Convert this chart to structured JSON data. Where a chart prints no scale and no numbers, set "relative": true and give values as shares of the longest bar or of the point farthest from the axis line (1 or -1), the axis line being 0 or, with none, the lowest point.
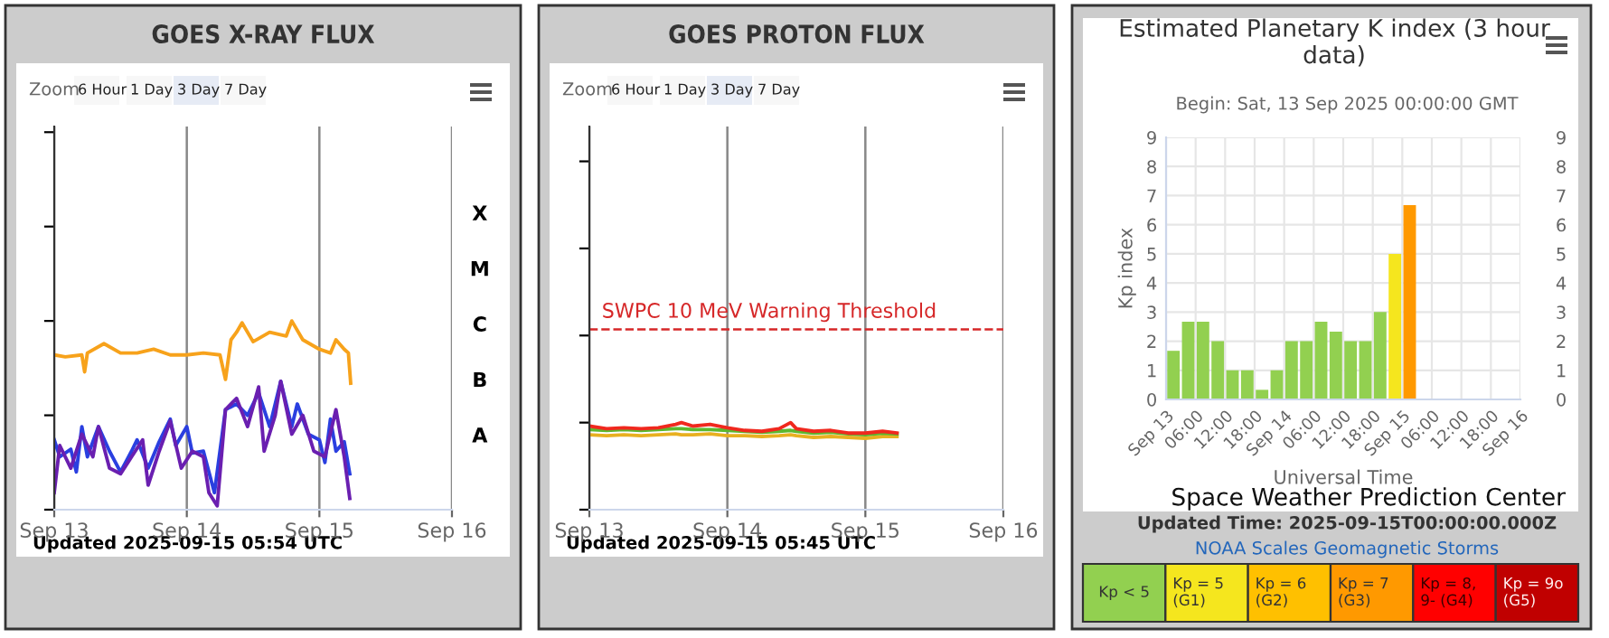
{
  "chart_data": [
    {
      "type": "line",
      "title": "GOES X-RAY FLUX",
      "relative": true,
      "grid": "x",
      "xlim": [
        "2025-09-13",
        "2025-09-16"
      ],
      "xticks": [
        {
          "value": "2025-09-13",
          "label": "Sep 13"
        },
        {
          "value": "2025-09-14",
          "label": "Sep 14"
        },
        {
          "value": "2025-09-15",
          "label": "Sep 15"
        },
        {
          "value": "2025-09-16",
          "label": "Sep 16"
        }
      ],
      "annotations": [
        "Zoom",
        "6 Hour",
        "1 Day",
        "3 Day",
        "7 Day",
        "Updated 2025-09-15 05:54 UTC",
        "X",
        "M",
        "C",
        "B",
        "A"
      ],
      "series": [
        {
          "color": "#f7a21b",
          "x": [
            "2025-09-13T00:00",
            "2025-09-13T02:00",
            "2025-09-13T05:00",
            "2025-09-13T05:30",
            "2025-09-13T06:00",
            "2025-09-13T09:00",
            "2025-09-13T12:00",
            "2025-09-13T15:00",
            "2025-09-13T18:00",
            "2025-09-13T21:00",
            "2025-09-14T00:00",
            "2025-09-14T03:00",
            "2025-09-14T06:00",
            "2025-09-14T07:00",
            "2025-09-14T08:00",
            "2025-09-14T09:00",
            "2025-09-14T10:00",
            "2025-09-14T12:00",
            "2025-09-14T15:00",
            "2025-09-14T18:00",
            "2025-09-14T19:00",
            "2025-09-14T21:00",
            "2025-09-15T00:00",
            "2025-09-15T02:00",
            "2025-09-15T03:00",
            "2025-09-15T04:30",
            "2025-09-15T05:15",
            "2025-09-15T05:40"
          ],
          "values": [
            0.82,
            0.81,
            0.82,
            0.73,
            0.83,
            0.88,
            0.83,
            0.83,
            0.85,
            0.82,
            0.82,
            0.83,
            0.82,
            0.69,
            0.9,
            0.94,
            0.99,
            0.89,
            0.94,
            0.92,
            1.0,
            0.9,
            0.85,
            0.83,
            0.9,
            0.85,
            0.83,
            0.67
          ]
        },
        {
          "color": "#2a3fe0",
          "x": [
            "2025-09-13T00:00",
            "2025-09-13T01:00",
            "2025-09-13T03:00",
            "2025-09-13T04:00",
            "2025-09-13T05:00",
            "2025-09-13T06:00",
            "2025-09-13T08:00",
            "2025-09-13T10:00",
            "2025-09-13T12:00",
            "2025-09-13T14:00",
            "2025-09-13T15:00",
            "2025-09-13T17:00",
            "2025-09-13T19:00",
            "2025-09-13T21:00",
            "2025-09-13T22:00",
            "2025-09-14T00:00",
            "2025-09-14T01:00",
            "2025-09-14T03:00",
            "2025-09-14T05:00",
            "2025-09-14T06:00",
            "2025-09-14T07:00",
            "2025-09-14T09:00",
            "2025-09-14T11:00",
            "2025-09-14T13:00",
            "2025-09-14T15:00",
            "2025-09-14T17:00",
            "2025-09-14T19:00",
            "2025-09-14T20:00",
            "2025-09-14T22:00",
            "2025-09-15T00:00",
            "2025-09-15T01:00",
            "2025-09-15T02:00",
            "2025-09-15T03:00",
            "2025-09-15T04:30",
            "2025-09-15T05:30"
          ],
          "values": [
            0.37,
            0.28,
            0.32,
            0.2,
            0.44,
            0.28,
            0.44,
            0.31,
            0.2,
            0.31,
            0.37,
            0.22,
            0.36,
            0.48,
            0.34,
            0.44,
            0.3,
            0.31,
            0.09,
            0.31,
            0.53,
            0.56,
            0.5,
            0.62,
            0.44,
            0.68,
            0.44,
            0.56,
            0.4,
            0.37,
            0.25,
            0.48,
            0.31,
            0.36,
            0.19
          ]
        },
        {
          "color": "#6a1fb0",
          "x": [
            "2025-09-13T00:00",
            "2025-09-13T01:00",
            "2025-09-13T03:00",
            "2025-09-13T05:00",
            "2025-09-13T07:00",
            "2025-09-13T08:00",
            "2025-09-13T10:00",
            "2025-09-13T12:00",
            "2025-09-13T14:00",
            "2025-09-13T16:00",
            "2025-09-13T17:00",
            "2025-09-13T19:00",
            "2025-09-13T21:00",
            "2025-09-13T23:00",
            "2025-09-14T01:00",
            "2025-09-14T03:00",
            "2025-09-14T04:00",
            "2025-09-14T05:30",
            "2025-09-14T07:00",
            "2025-09-14T09:00",
            "2025-09-14T11:00",
            "2025-09-14T13:00",
            "2025-09-14T14:00",
            "2025-09-14T16:00",
            "2025-09-14T17:00",
            "2025-09-14T19:00",
            "2025-09-14T21:00",
            "2025-09-14T23:00",
            "2025-09-15T01:00",
            "2025-09-15T03:00",
            "2025-09-15T04:30",
            "2025-09-15T05:30"
          ],
          "values": [
            0.09,
            0.34,
            0.22,
            0.4,
            0.28,
            0.44,
            0.22,
            0.19,
            0.28,
            0.37,
            0.13,
            0.31,
            0.47,
            0.22,
            0.31,
            0.28,
            0.09,
            0.02,
            0.53,
            0.59,
            0.44,
            0.65,
            0.31,
            0.5,
            0.68,
            0.4,
            0.5,
            0.31,
            0.28,
            0.53,
            0.28,
            0.06
          ]
        }
      ]
    },
    {
      "type": "line",
      "title": "GOES PROTON FLUX",
      "relative": true,
      "grid": "x",
      "xlim": [
        "2025-09-13",
        "2025-09-16"
      ],
      "xticks": [
        {
          "value": "2025-09-13",
          "label": "Sep 13"
        },
        {
          "value": "2025-09-14",
          "label": "Sep 14"
        },
        {
          "value": "2025-09-15",
          "label": "Sep 15"
        },
        {
          "value": "2025-09-16",
          "label": "Sep 16"
        }
      ],
      "ref_lines": [
        {
          "axis": "y",
          "value": 2.07,
          "label": "SWPC 10 MeV Warning Threshold",
          "color": "#d62728",
          "line_style": "dashed"
        }
      ],
      "annotations": [
        "Zoom",
        "6 Hour",
        "1 Day",
        "3 Day",
        "7 Day",
        "Updated 2025-09-15 05:45 UTC"
      ],
      "x": [
        "2025-09-13T00:00",
        "2025-09-13T03:00",
        "2025-09-13T06:00",
        "2025-09-13T09:00",
        "2025-09-13T12:00",
        "2025-09-13T15:00",
        "2025-09-13T16:00",
        "2025-09-13T18:00",
        "2025-09-13T21:00",
        "2025-09-14T00:00",
        "2025-09-14T03:00",
        "2025-09-14T06:00",
        "2025-09-14T09:00",
        "2025-09-14T11:00",
        "2025-09-14T12:00",
        "2025-09-14T15:00",
        "2025-09-14T18:00",
        "2025-09-14T21:00",
        "2025-09-15T00:00",
        "2025-09-15T03:00",
        "2025-09-15T05:30"
      ],
      "series": [
        {
          "color": "#e8b020",
          "values": [
            0.86,
            0.85,
            0.86,
            0.85,
            0.86,
            0.87,
            0.86,
            0.86,
            0.87,
            0.85,
            0.85,
            0.84,
            0.85,
            0.86,
            0.85,
            0.83,
            0.84,
            0.83,
            0.82,
            0.84,
            0.84
          ]
        },
        {
          "color": "#5cb82e",
          "values": [
            0.92,
            0.91,
            0.92,
            0.91,
            0.92,
            0.93,
            0.93,
            0.92,
            0.92,
            0.91,
            0.9,
            0.89,
            0.9,
            0.91,
            0.9,
            0.88,
            0.89,
            0.87,
            0.86,
            0.88,
            0.87
          ]
        },
        {
          "color": "#f0281e",
          "values": [
            0.96,
            0.93,
            0.94,
            0.93,
            0.94,
            0.98,
            1.0,
            0.96,
            0.98,
            0.94,
            0.91,
            0.9,
            0.93,
            1.0,
            0.93,
            0.9,
            0.91,
            0.88,
            0.88,
            0.9,
            0.88
          ]
        }
      ]
    },
    {
      "type": "bar",
      "title": "Estimated Planetary K index (3 hour data)",
      "subtitle": "Begin: Sat, 13 Sep 2025 00:00:00 GMT",
      "xlabel": "Universal Time",
      "ylabel": "Kp index",
      "grid": true,
      "xlim": [
        "2025-09-13T00:00",
        "2025-09-16T00:00"
      ],
      "xticks": [
        {
          "value": "2025-09-13T00:00",
          "label": "Sep 13"
        },
        {
          "value": "2025-09-13T06:00",
          "label": "06:00"
        },
        {
          "value": "2025-09-13T12:00",
          "label": "12:00"
        },
        {
          "value": "2025-09-13T18:00",
          "label": "18:00"
        },
        {
          "value": "2025-09-14T00:00",
          "label": "Sep 14"
        },
        {
          "value": "2025-09-14T06:00",
          "label": "06:00"
        },
        {
          "value": "2025-09-14T12:00",
          "label": "12:00"
        },
        {
          "value": "2025-09-14T18:00",
          "label": "18:00"
        },
        {
          "value": "2025-09-15T00:00",
          "label": "Sep 15"
        },
        {
          "value": "2025-09-15T06:00",
          "label": "06:00"
        },
        {
          "value": "2025-09-15T12:00",
          "label": "12:00"
        },
        {
          "value": "2025-09-15T18:00",
          "label": "18:00"
        },
        {
          "value": "2025-09-16T00:00",
          "label": "Sep 16"
        }
      ],
      "ylim": [
        0,
        9
      ],
      "yticks": [
        0,
        1,
        2,
        3,
        4,
        5,
        6,
        7,
        8,
        9
      ],
      "y2lim": [
        0,
        9
      ],
      "y2ticks": [
        0,
        1,
        2,
        3,
        4,
        5,
        6,
        7,
        8,
        9
      ],
      "x": [
        "2025-09-13T01:30",
        "2025-09-13T04:30",
        "2025-09-13T07:30",
        "2025-09-13T10:30",
        "2025-09-13T13:30",
        "2025-09-13T16:30",
        "2025-09-13T19:30",
        "2025-09-13T22:30",
        "2025-09-14T01:30",
        "2025-09-14T04:30",
        "2025-09-14T07:30",
        "2025-09-14T10:30",
        "2025-09-14T13:30",
        "2025-09-14T16:30",
        "2025-09-14T19:30",
        "2025-09-14T22:30",
        "2025-09-15T01:30"
      ],
      "values": [
        1.67,
        2.67,
        2.67,
        2,
        1,
        1,
        0.33,
        1,
        2,
        2,
        2.67,
        2.33,
        2,
        2,
        3,
        5,
        6.67
      ],
      "colors": [
        "#92d050",
        "#92d050",
        "#92d050",
        "#92d050",
        "#92d050",
        "#92d050",
        "#92d050",
        "#92d050",
        "#92d050",
        "#92d050",
        "#92d050",
        "#92d050",
        "#92d050",
        "#92d050",
        "#92d050",
        "#f5e61e",
        "#ff9900"
      ],
      "annotations": [
        "Space Weather Prediction Center",
        "Updated Time: 2025-09-15T00:00:00.000Z",
        "NOAA Scales Geomagnetic Storms",
        "Kp < 5",
        "Kp = 5 (G1)",
        "Kp = 6 (G2)",
        "Kp = 7 (G3)",
        "Kp = 8, 9- (G4)",
        "Kp = 9o (G5)"
      ]
    }
  ]
}
